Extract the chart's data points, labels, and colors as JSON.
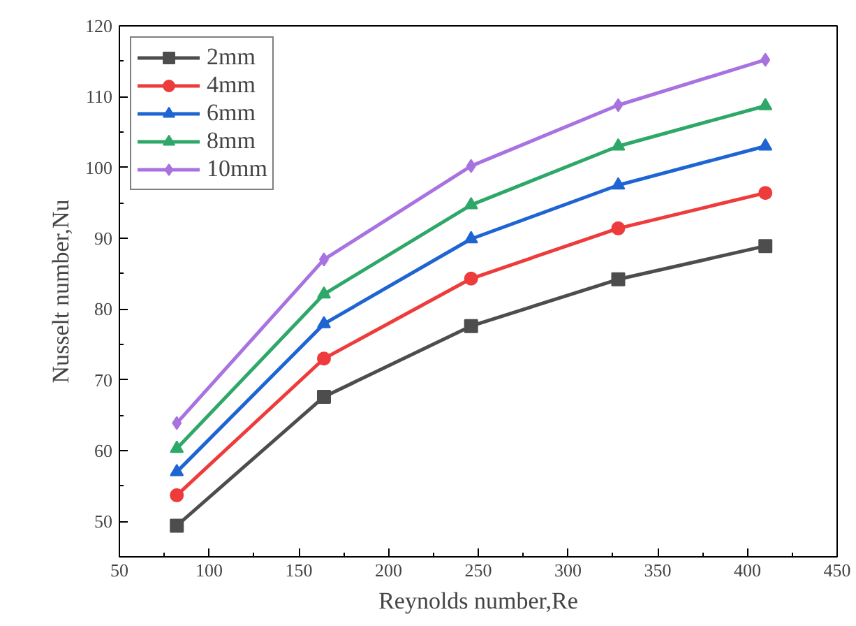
{
  "chart_data": {
    "type": "line",
    "xlabel": "Reynolds number,Re",
    "ylabel": "Nusselt number,Nu",
    "x": [
      82,
      164,
      246,
      328,
      410
    ],
    "xlim": [
      50,
      450
    ],
    "xticks": [
      50,
      100,
      150,
      200,
      250,
      300,
      350,
      400,
      450
    ],
    "ylim": [
      45,
      120
    ],
    "yticks": [
      50,
      60,
      70,
      80,
      90,
      100,
      110,
      120
    ],
    "grid": false,
    "legend": "top left",
    "line_style": "solid",
    "series": [
      {
        "name": "2mm",
        "color": "#4d4d4d",
        "marker": "square",
        "values": [
          49.4,
          67.6,
          77.6,
          84.2,
          88.9
        ]
      },
      {
        "name": "4mm",
        "color": "#ee3b3b",
        "marker": "circle",
        "values": [
          53.7,
          73.0,
          84.3,
          91.4,
          96.4
        ]
      },
      {
        "name": "6mm",
        "color": "#1e64d2",
        "marker": "triangle",
        "values": [
          57.0,
          77.9,
          89.9,
          97.5,
          103.0
        ]
      },
      {
        "name": "8mm",
        "color": "#2ea868",
        "marker": "triangle",
        "values": [
          60.3,
          82.1,
          94.7,
          103.0,
          108.7
        ]
      },
      {
        "name": "10mm",
        "color": "#a872e0",
        "marker": "diamond",
        "values": [
          63.9,
          87.0,
          100.2,
          108.8,
          115.2
        ]
      }
    ]
  }
}
